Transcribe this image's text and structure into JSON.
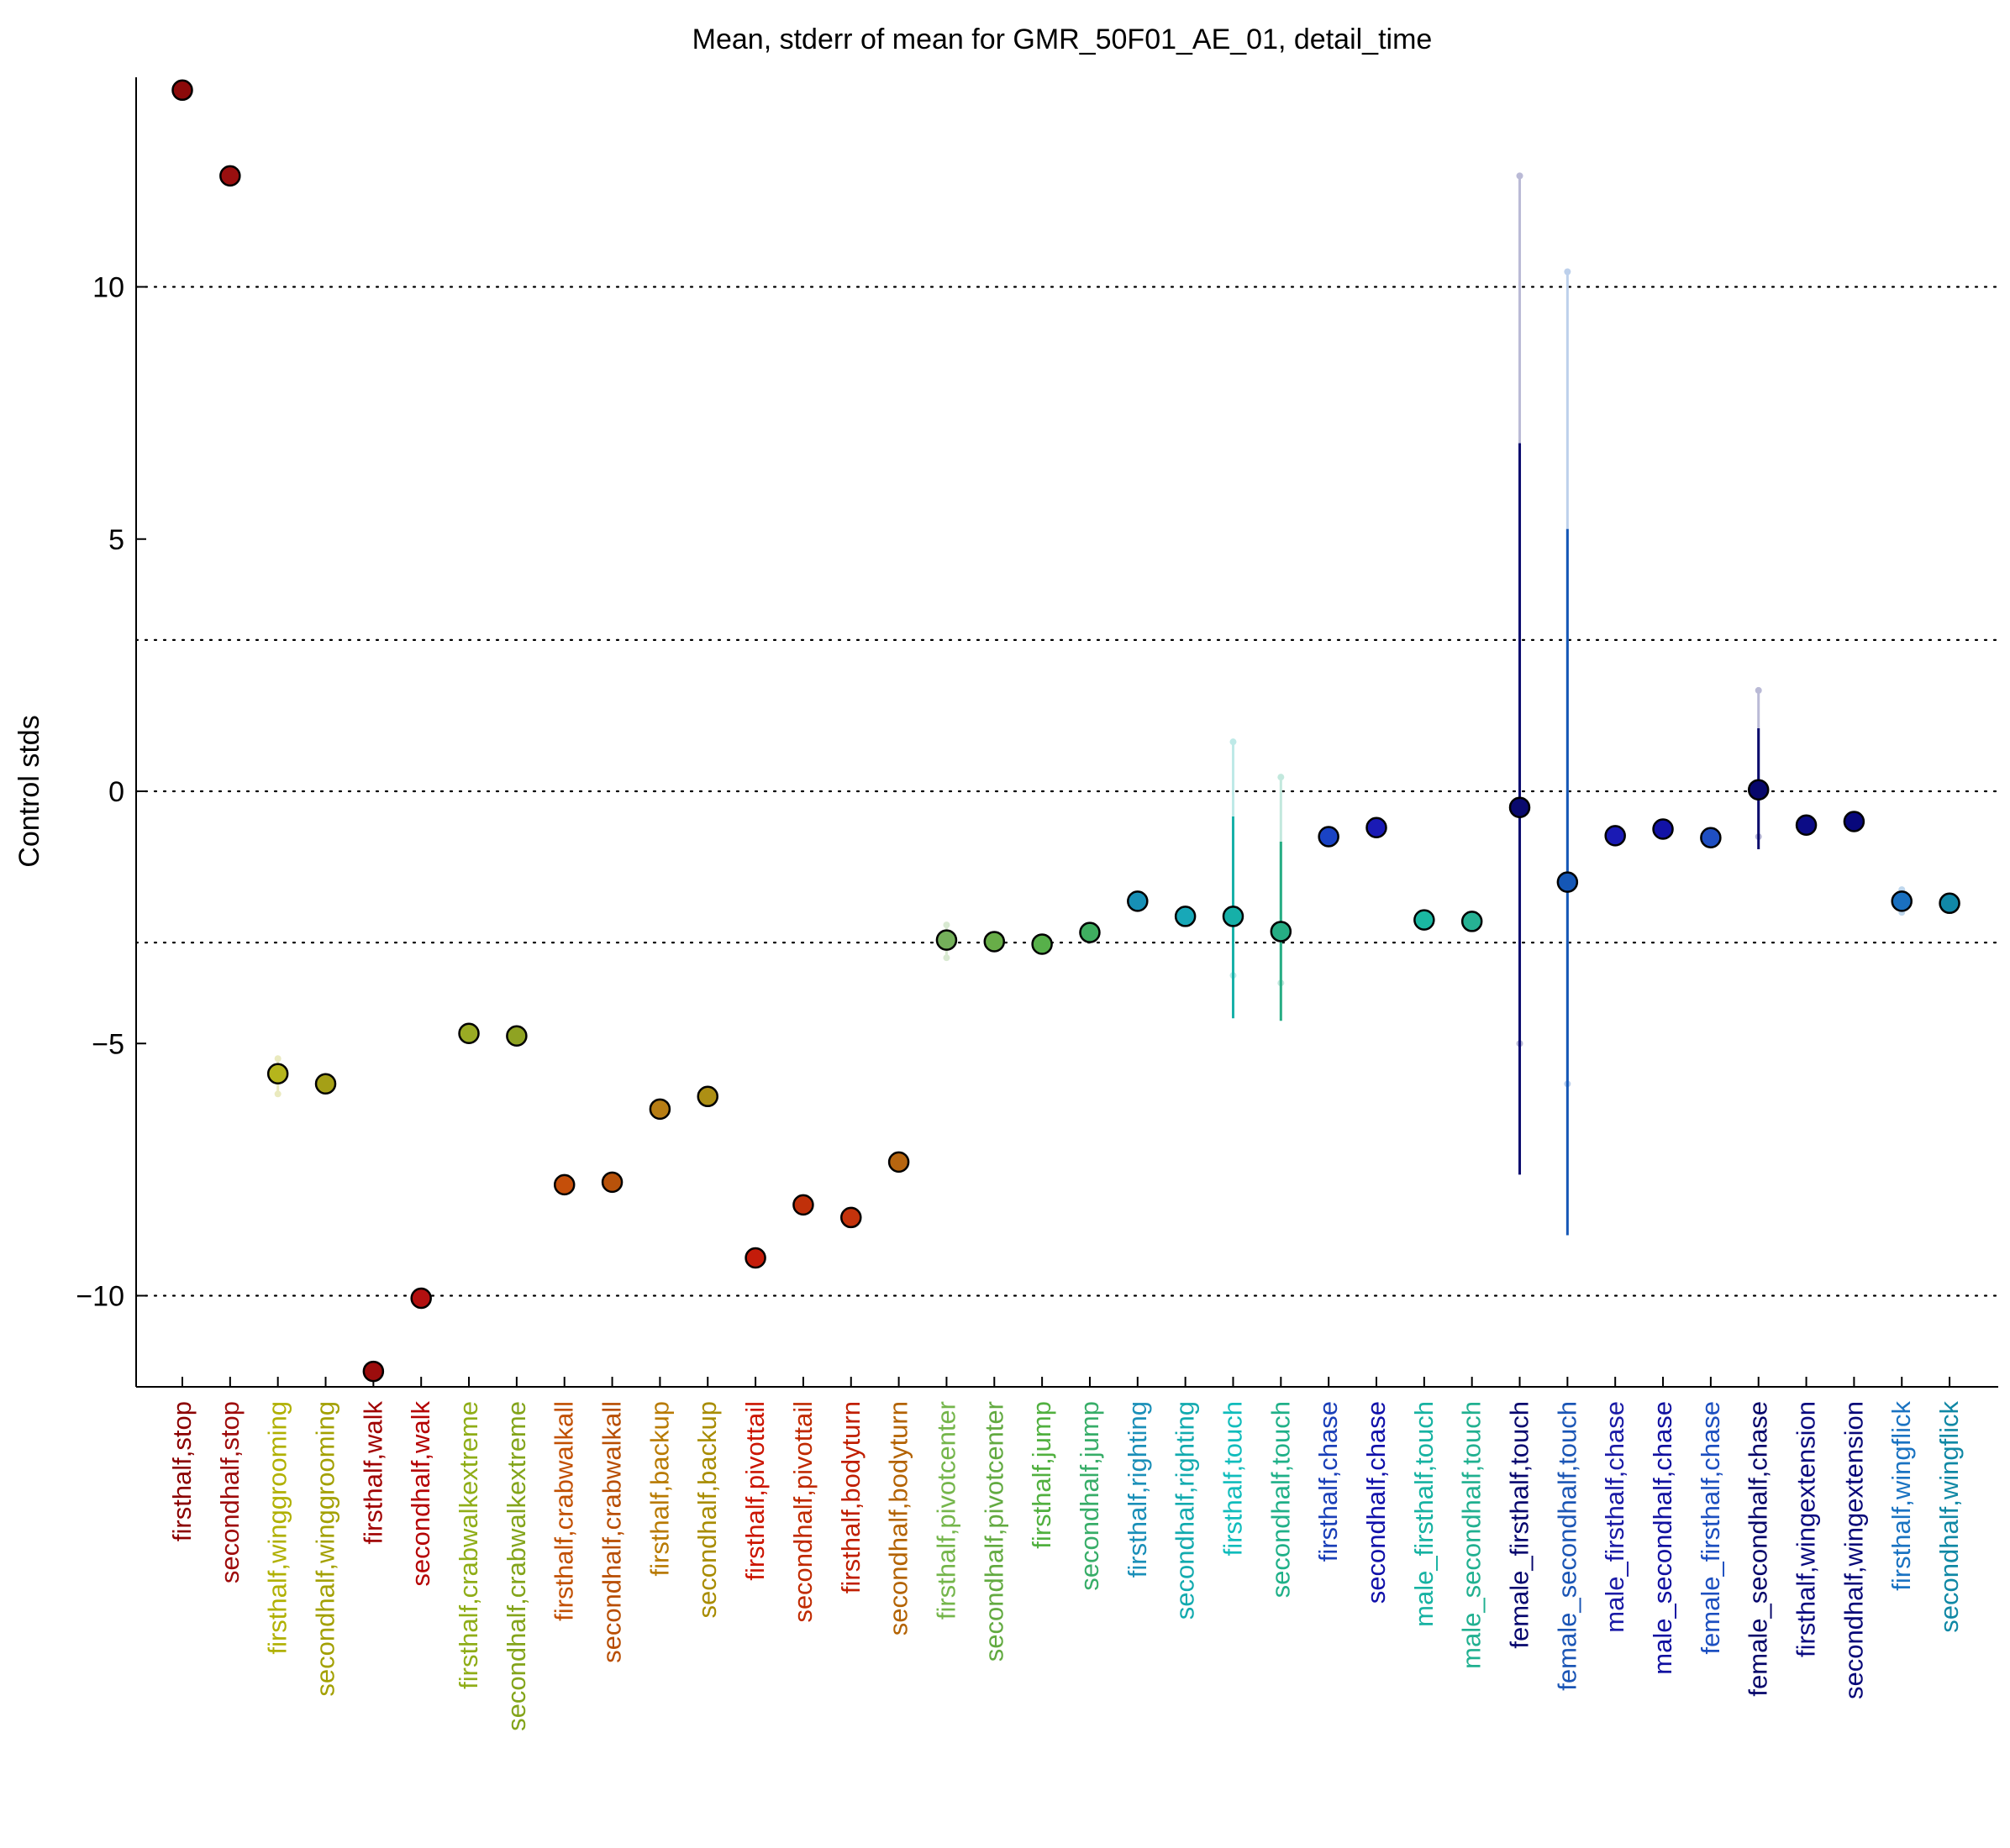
{
  "chart_data": {
    "type": "scatter",
    "title": "Mean, stderr of mean for GMR_50F01_AE_01, detail_time",
    "xlabel": "",
    "ylabel": "Control stds",
    "ylim": [
      -11.8,
      14.2
    ],
    "yticks": [
      10,
      5,
      0,
      -5,
      -10
    ],
    "ytick_labels": [
      "10",
      "5",
      "0",
      "−5",
      "−10"
    ],
    "ref_lines": [
      10,
      3,
      0,
      -3,
      -10
    ],
    "grid": false,
    "legend": "none",
    "categories": [
      "firsthalf,stop",
      "secondhalf,stop",
      "firsthalf,winggrooming",
      "secondhalf,winggrooming",
      "firsthalf,walk",
      "secondhalf,walk",
      "firsthalf,crabwalkextreme",
      "secondhalf,crabwalkextreme",
      "firsthalf,crabwalkall",
      "secondhalf,crabwalkall",
      "firsthalf,backup",
      "secondhalf,backup",
      "firsthalf,pivottail",
      "secondhalf,pivottail",
      "firsthalf,bodyturn",
      "secondhalf,bodyturn",
      "firsthalf,pivotcenter",
      "secondhalf,pivotcenter",
      "firsthalf,jump",
      "secondhalf,jump",
      "firsthalf,righting",
      "secondhalf,righting",
      "firsthalf,touch",
      "secondhalf,touch",
      "firsthalf,chase",
      "secondhalf,chase",
      "male_firsthalf,touch",
      "male_secondhalf,touch",
      "female_firsthalf,touch",
      "female_secondhalf,touch",
      "male_firsthalf,chase",
      "male_secondhalf,chase",
      "female_firsthalf,chase",
      "female_secondhalf,chase",
      "firsthalf,wingextension",
      "secondhalf,wingextension",
      "firsthalf,wingflick",
      "secondhalf,wingflick"
    ],
    "values": [
      13.9,
      12.2,
      -5.6,
      -5.8,
      -11.5,
      -10.05,
      -4.8,
      -4.85,
      -7.8,
      -7.75,
      -6.3,
      -6.05,
      -9.25,
      -8.2,
      -8.45,
      -7.35,
      -2.95,
      -2.98,
      -3.03,
      -2.8,
      -2.18,
      -2.48,
      -2.48,
      -2.78,
      -0.9,
      -0.72,
      -2.55,
      -2.58,
      -0.32,
      -1.8,
      -0.88,
      -0.75,
      -0.92,
      0.03,
      -0.67,
      -0.6,
      -2.18,
      -2.22
    ],
    "stderr_bars": [
      null,
      null,
      null,
      null,
      null,
      null,
      null,
      null,
      null,
      null,
      null,
      null,
      null,
      null,
      null,
      null,
      null,
      null,
      null,
      null,
      null,
      null,
      [
        -4.5,
        -0.5
      ],
      [
        -4.55,
        -1.0
      ],
      null,
      null,
      null,
      null,
      [
        -7.6,
        6.9
      ],
      [
        -8.8,
        5.2
      ],
      null,
      null,
      null,
      [
        -1.15,
        1.25
      ],
      null,
      null,
      null,
      null
    ],
    "range_bars": [
      null,
      null,
      [
        -6.0,
        -5.3
      ],
      null,
      null,
      null,
      null,
      null,
      null,
      null,
      null,
      null,
      null,
      null,
      null,
      null,
      [
        -3.3,
        -2.65
      ],
      null,
      null,
      null,
      null,
      null,
      [
        -3.65,
        0.98
      ],
      [
        -3.8,
        0.28
      ],
      null,
      null,
      null,
      null,
      [
        -5.0,
        12.2
      ],
      [
        -5.8,
        10.3
      ],
      null,
      null,
      null,
      [
        -0.9,
        2.0
      ],
      null,
      null,
      [
        -2.4,
        -1.95
      ],
      null
    ],
    "marker_colors": [
      "#8c0a0a",
      "#9a0f0f",
      "#b5b51c",
      "#a5a016",
      "#9c0d0d",
      "#b21010",
      "#9aab24",
      "#8fa322",
      "#c54f0a",
      "#b8520a",
      "#b77d14",
      "#ad8f14",
      "#c41c0a",
      "#c0300a",
      "#c4330c",
      "#b7650f",
      "#74b05a",
      "#68ad48",
      "#57b04a",
      "#3fae60",
      "#1790b6",
      "#18a8b8",
      "#16b0a8",
      "#26ad84",
      "#1a43c4",
      "#1a1ab5",
      "#1ab8a2",
      "#26b294",
      "#0a0a6e",
      "#1557b6",
      "#1a1ab4",
      "#1212a6",
      "#1f4fc3",
      "#07076b",
      "#0c0c86",
      "#08087b",
      "#1a70c0",
      "#1188a8"
    ],
    "label_colors": [
      "#8b0000",
      "#9e0b0b",
      "#b0b000",
      "#a3a000",
      "#a00000",
      "#b50000",
      "#8fad17",
      "#83a41a",
      "#c14f00",
      "#b84d00",
      "#b87a00",
      "#a88c00",
      "#cc1500",
      "#c02a00",
      "#c01e00",
      "#b36200",
      "#74b54a",
      "#62aa40",
      "#51b03f",
      "#37ad68",
      "#1a8fb8",
      "#12aaaf",
      "#10bcbc",
      "#1fb088",
      "#1a3fb8",
      "#1010aa",
      "#16b2a2",
      "#20b090",
      "#06066e",
      "#1a55b5",
      "#1a1aa6",
      "#1010a0",
      "#1c4fc0",
      "#05056a",
      "#0a0a80",
      "#070778",
      "#1a73c2",
      "#1088a5"
    ]
  }
}
